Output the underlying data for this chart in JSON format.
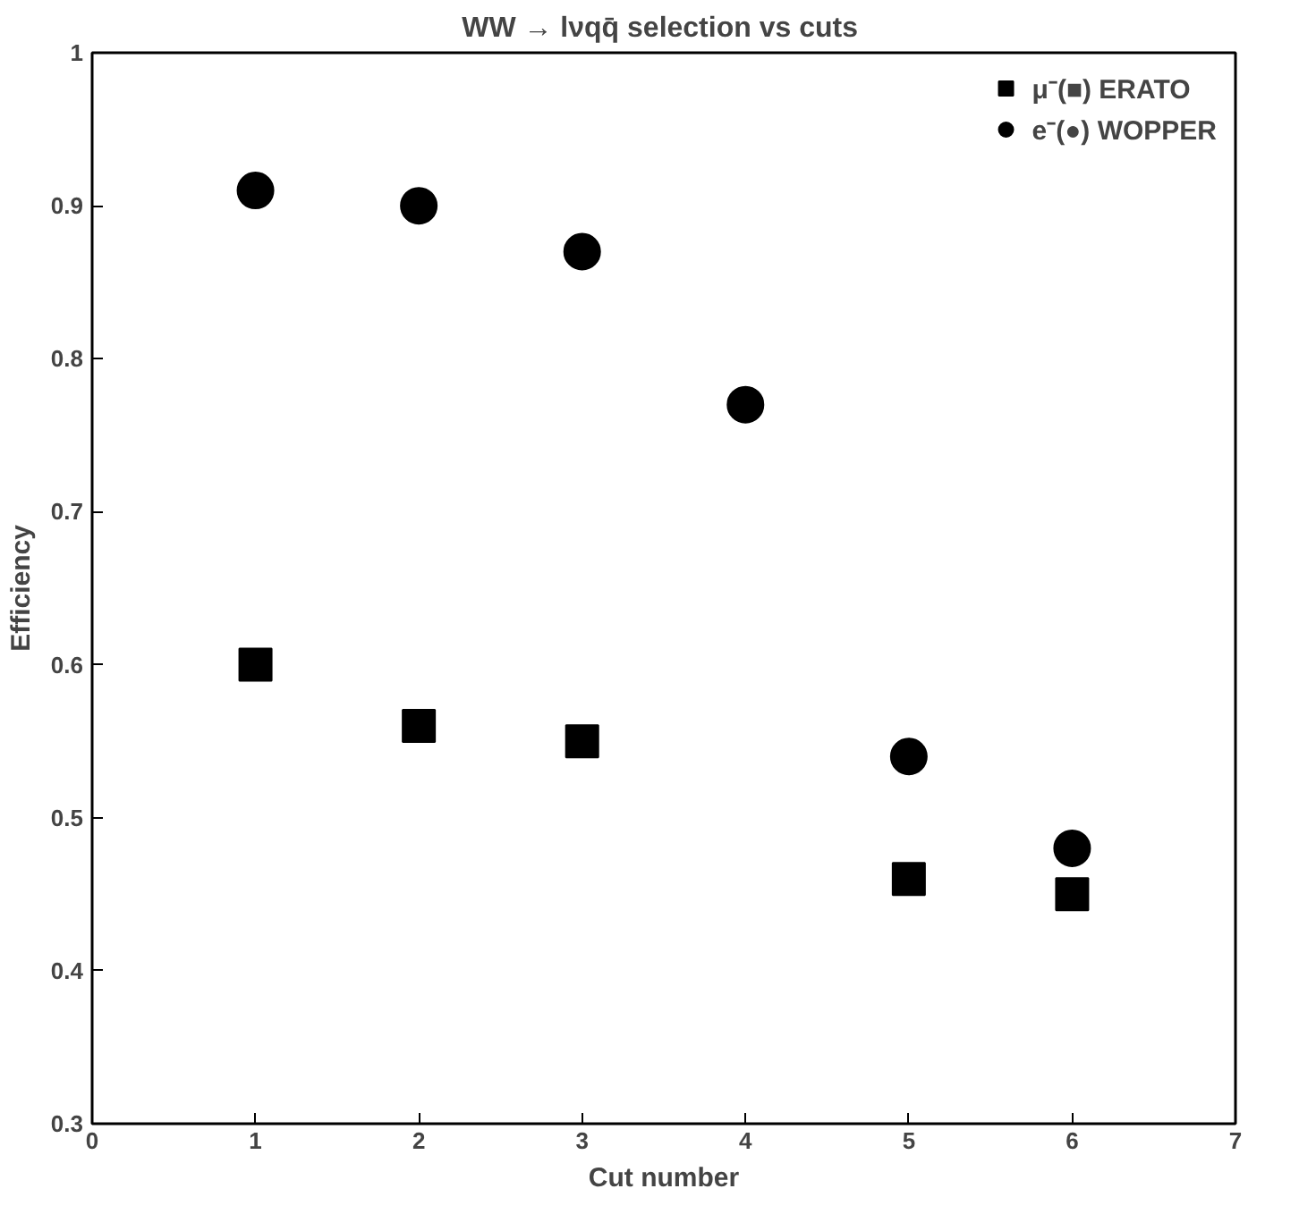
{
  "chart_data": {
    "type": "scatter",
    "title": "WW → lνqq̄  selection vs cuts",
    "xlabel": "Cut number",
    "ylabel": "Efficiency",
    "x": [
      1,
      2,
      3,
      4,
      5,
      6
    ],
    "series": [
      {
        "name": "μ⁻(■) ERATO",
        "color": "#000000",
        "marker": "square",
        "values": [
          0.6,
          0.56,
          0.55,
          null,
          0.46,
          0.45
        ]
      },
      {
        "name": "e⁻(●) WOPPER",
        "color": "#000000",
        "marker": "circle",
        "values": [
          0.91,
          0.9,
          0.87,
          0.77,
          0.54,
          0.48
        ]
      }
    ],
    "xlim": [
      0,
      7
    ],
    "xticks": [
      0,
      1,
      2,
      3,
      4,
      5,
      6,
      7
    ],
    "ylim": [
      0.3,
      1
    ],
    "yticks": [
      0.3,
      0.4,
      0.5,
      0.6,
      0.7,
      0.8,
      0.9,
      1
    ],
    "grid": false,
    "legend": "top right"
  }
}
